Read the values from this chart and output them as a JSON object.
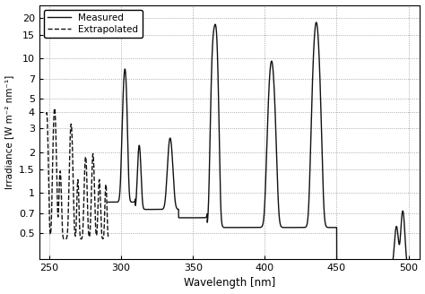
{
  "xlabel": "Wavelength [nm]",
  "ylabel": "Irradiance [W m⁻² nm⁻¹]",
  "xlim": [
    243,
    508
  ],
  "ylim": [
    0.32,
    25
  ],
  "xticks": [
    250,
    300,
    350,
    400,
    450,
    500
  ],
  "yticks": [
    0.5,
    0.7,
    1.0,
    1.5,
    2.0,
    3.0,
    4.0,
    5.0,
    7.0,
    10.0,
    15.0,
    20.0
  ],
  "line_color": "#111111",
  "legend_measured": "Measured",
  "legend_extrap": "Extrapolated"
}
